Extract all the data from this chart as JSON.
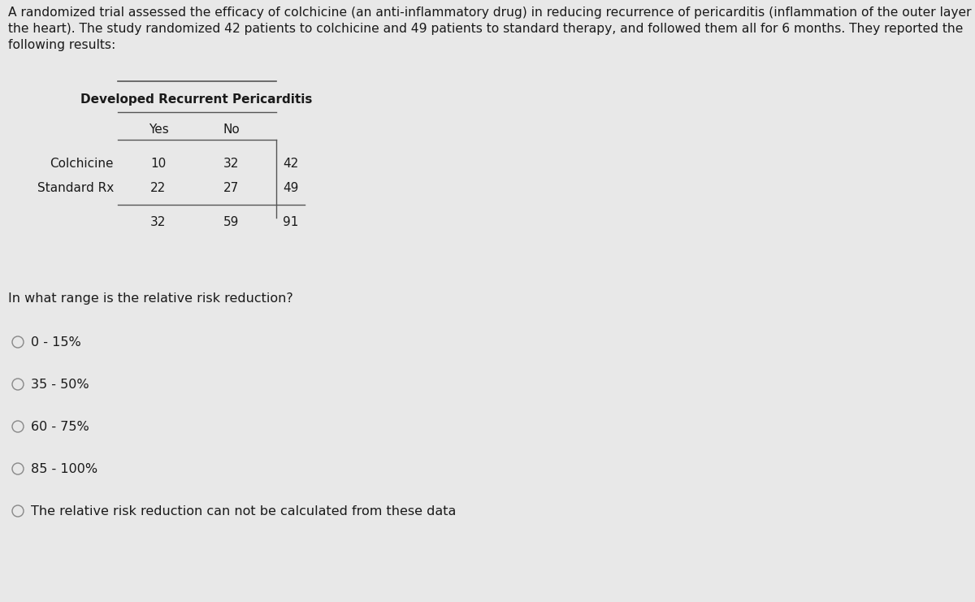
{
  "bg_color": "#e8e8e8",
  "title_line1": "A randomized trial assessed the efficacy of colchicine (an anti-inflammatory drug) in reducing recurrence of pericarditis (inflammation of the outer layer of",
  "title_line2": "the heart). The study randomized 42 patients to colchicine and 49 patients to standard therapy, and followed them all for 6 months. They reported the",
  "title_line3": "following results:",
  "title_fontsize": 11.2,
  "table_header": "Developed Recurrent Pericarditis",
  "col_headers": [
    "Yes",
    "No"
  ],
  "row_labels": [
    "Colchicine",
    "Standard Rx"
  ],
  "table_data": [
    [
      10,
      32,
      42
    ],
    [
      22,
      27,
      49
    ],
    [
      32,
      59,
      91
    ]
  ],
  "question": "In what range is the relative risk reduction?",
  "question_fontsize": 11.5,
  "options": [
    "0 - 15%",
    "35 - 50%",
    "60 - 75%",
    "85 - 100%",
    "The relative risk reduction can not be calculated from these data"
  ],
  "option_fontsize": 11.5,
  "text_color": "#1a1a1a",
  "line_color": "#555555"
}
